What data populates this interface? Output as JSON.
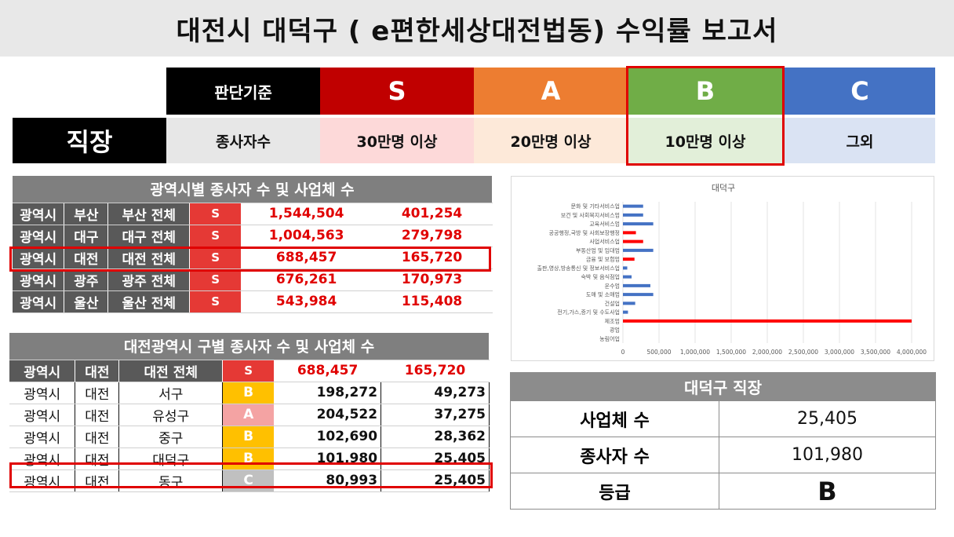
{
  "title": "대전시 대덕구 ( e편한세상대전법동) 수익률 보고서",
  "criteria": {
    "header_label": "판단기준",
    "row_label": "종사자수",
    "section_label": "직장",
    "grades": [
      {
        "grade": "S",
        "threshold": "30만명 이상",
        "color": "#c00000",
        "bg": "#fdd9d9"
      },
      {
        "grade": "A",
        "threshold": "20만명 이상",
        "color": "#ed7d31",
        "bg": "#fde9d9"
      },
      {
        "grade": "B",
        "threshold": "10만명 이상",
        "color": "#70ad47",
        "bg": "#e2efd9"
      },
      {
        "grade": "C",
        "threshold": "그외",
        "color": "#4472c4",
        "bg": "#dae3f3"
      }
    ]
  },
  "metro_table": {
    "title": "광역시별 종사자 수 및 사업체 수",
    "rows": [
      {
        "type": "광역시",
        "city": "부산",
        "area": "부산 전체",
        "grade": "S",
        "workers": "1,544,504",
        "firms": "401,254"
      },
      {
        "type": "광역시",
        "city": "대구",
        "area": "대구 전체",
        "grade": "S",
        "workers": "1,004,563",
        "firms": "279,798"
      },
      {
        "type": "광역시",
        "city": "대전",
        "area": "대전 전체",
        "grade": "S",
        "workers": "688,457",
        "firms": "165,720"
      },
      {
        "type": "광역시",
        "city": "광주",
        "area": "광주 전체",
        "grade": "S",
        "workers": "676,261",
        "firms": "170,973"
      },
      {
        "type": "광역시",
        "city": "울산",
        "area": "울산 전체",
        "grade": "S",
        "workers": "543,984",
        "firms": "115,408"
      }
    ]
  },
  "daejeon_table": {
    "title": "대전광역시 구별 종사자 수 및 사업체 수",
    "header_row": {
      "type": "광역시",
      "city": "대전",
      "area": "대전 전체",
      "grade": "S",
      "workers": "688,457",
      "firms": "165,720"
    },
    "rows": [
      {
        "type": "광역시",
        "city": "대전",
        "area": "서구",
        "grade": "B",
        "workers": "198,272",
        "firms": "49,273"
      },
      {
        "type": "광역시",
        "city": "대전",
        "area": "유성구",
        "grade": "A",
        "workers": "204,522",
        "firms": "37,275"
      },
      {
        "type": "광역시",
        "city": "대전",
        "area": "중구",
        "grade": "B",
        "workers": "102,690",
        "firms": "28,362"
      },
      {
        "type": "광역시",
        "city": "대전",
        "area": "대덕구",
        "grade": "B",
        "workers": "101,980",
        "firms": "25,405"
      },
      {
        "type": "광역시",
        "city": "대전",
        "area": "동구",
        "grade": "C",
        "workers": "80,993",
        "firms": "25,405"
      }
    ]
  },
  "chart_data": {
    "type": "bar",
    "title": "대덕구",
    "orientation": "horizontal",
    "categories": [
      "문화 및 기타서비스업",
      "보건 및 사회복지서비스업",
      "교육서비스업",
      "공공행정,국방 및 사회보장행정",
      "사업서비스업",
      "부동산업 및 임대업",
      "금융 및 보험업",
      "출판,영상,방송통신 및 정보서비스업",
      "숙박 및 음식점업",
      "운수업",
      "도매 및 소매업",
      "건설업",
      "전기,가스,증기 및 수도사업",
      "제조업",
      "광업",
      "농림어업"
    ],
    "values": [
      280000,
      280000,
      420000,
      180000,
      280000,
      420000,
      160000,
      60000,
      120000,
      380000,
      420000,
      170000,
      70000,
      4000000,
      0,
      0
    ],
    "bar_colors": [
      "#4472c4",
      "#4472c4",
      "#4472c4",
      "#ff0000",
      "#ff0000",
      "#4472c4",
      "#ff0000",
      "#4472c4",
      "#4472c4",
      "#4472c4",
      "#4472c4",
      "#4472c4",
      "#4472c4",
      "#ff0000",
      "#4472c4",
      "#4472c4"
    ],
    "xlim": [
      0,
      4000000
    ],
    "xticks": [
      "0",
      "500,000",
      "1,000,000",
      "1,500,000",
      "2,000,000",
      "2,500,000",
      "3,000,000",
      "3,500,000",
      "4,000,000"
    ],
    "grid": true
  },
  "summary": {
    "title": "대덕구 직장",
    "rows": [
      {
        "label": "사업체 수",
        "value": "25,405"
      },
      {
        "label": "종사자 수",
        "value": "101,980"
      },
      {
        "label": "등급",
        "value": "B"
      }
    ]
  }
}
